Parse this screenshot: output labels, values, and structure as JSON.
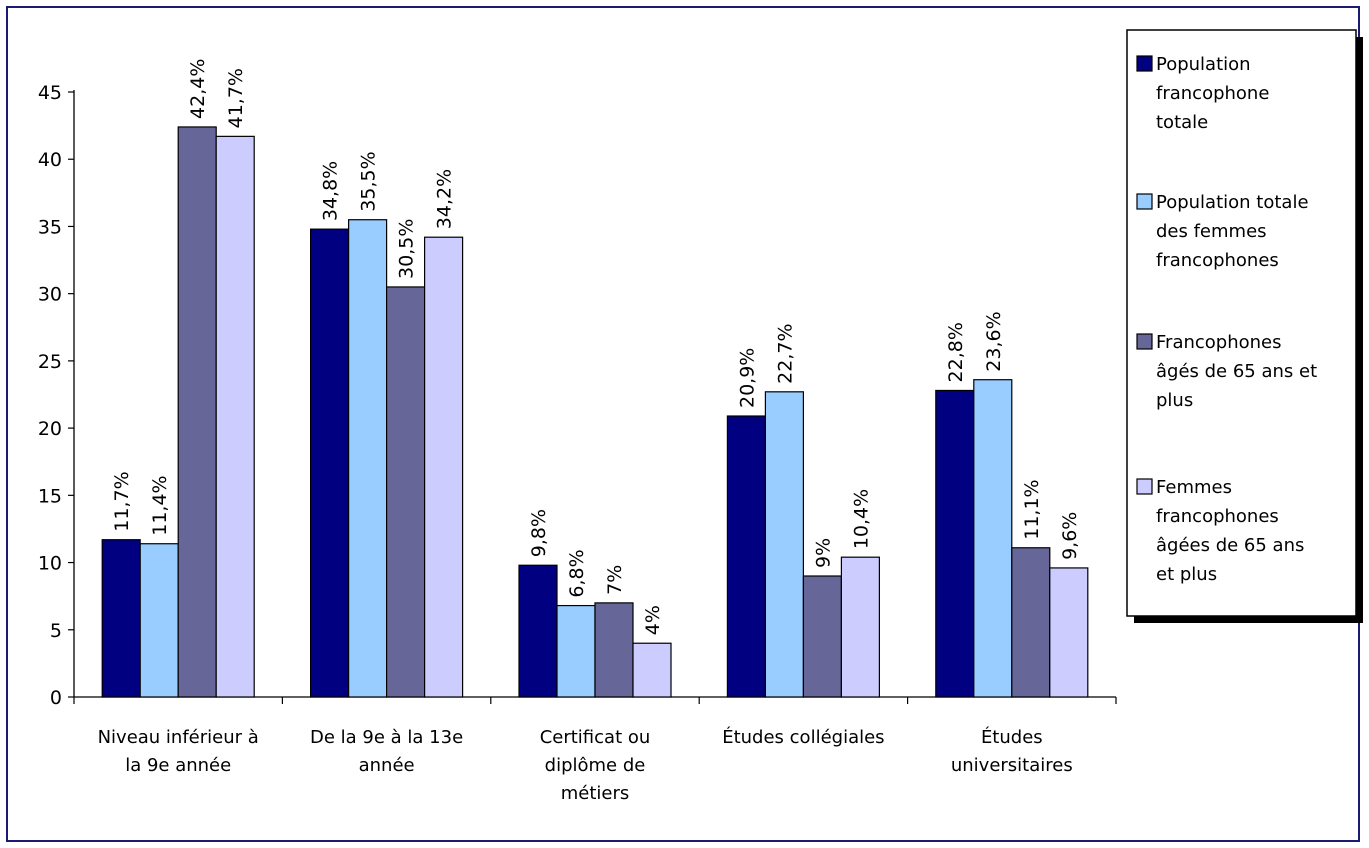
{
  "chart_data": {
    "type": "bar",
    "categories": [
      [
        "Niveau inférieur à",
        "la 9e année"
      ],
      [
        "De la 9e à la 13e",
        "année"
      ],
      [
        "Certificat ou",
        "diplôme de",
        "métiers"
      ],
      [
        "Études collégiales"
      ],
      [
        "Études",
        "universitaires"
      ]
    ],
    "series": [
      {
        "name": [
          "Population",
          "francophone",
          "totale"
        ],
        "color": "#000080",
        "values": [
          11.7,
          34.8,
          9.8,
          20.9,
          22.8
        ],
        "labels": [
          "11,7%",
          "34,8%",
          "9,8%",
          "20,9%",
          "22,8%"
        ]
      },
      {
        "name": [
          "Population totale",
          "des femmes",
          "francophones"
        ],
        "color": "#99ccff",
        "values": [
          11.4,
          35.5,
          6.8,
          22.7,
          23.6
        ],
        "labels": [
          "11,4%",
          "35,5%",
          "6,8%",
          "22,7%",
          "23,6%"
        ]
      },
      {
        "name": [
          "Francophones",
          "âgés de 65 ans et",
          "plus"
        ],
        "color": "#666699",
        "values": [
          42.4,
          30.5,
          7,
          9,
          11.1
        ],
        "labels": [
          "42,4%",
          "30,5%",
          "7%",
          "9%",
          "11,1%"
        ]
      },
      {
        "name": [
          "Femmes",
          "francophones",
          "âgées de 65 ans",
          "et plus"
        ],
        "color": "#ccccff",
        "values": [
          41.7,
          34.2,
          4,
          10.4,
          9.6
        ],
        "labels": [
          "41,7%",
          "34,2%",
          "4%",
          "10,4%",
          "9,6%"
        ]
      }
    ],
    "yticks": [
      "0",
      "5",
      "10",
      "15",
      "20",
      "25",
      "30",
      "35",
      "40",
      "45"
    ],
    "ylim": [
      0,
      45
    ],
    "legend_position": "right",
    "grid": false
  }
}
